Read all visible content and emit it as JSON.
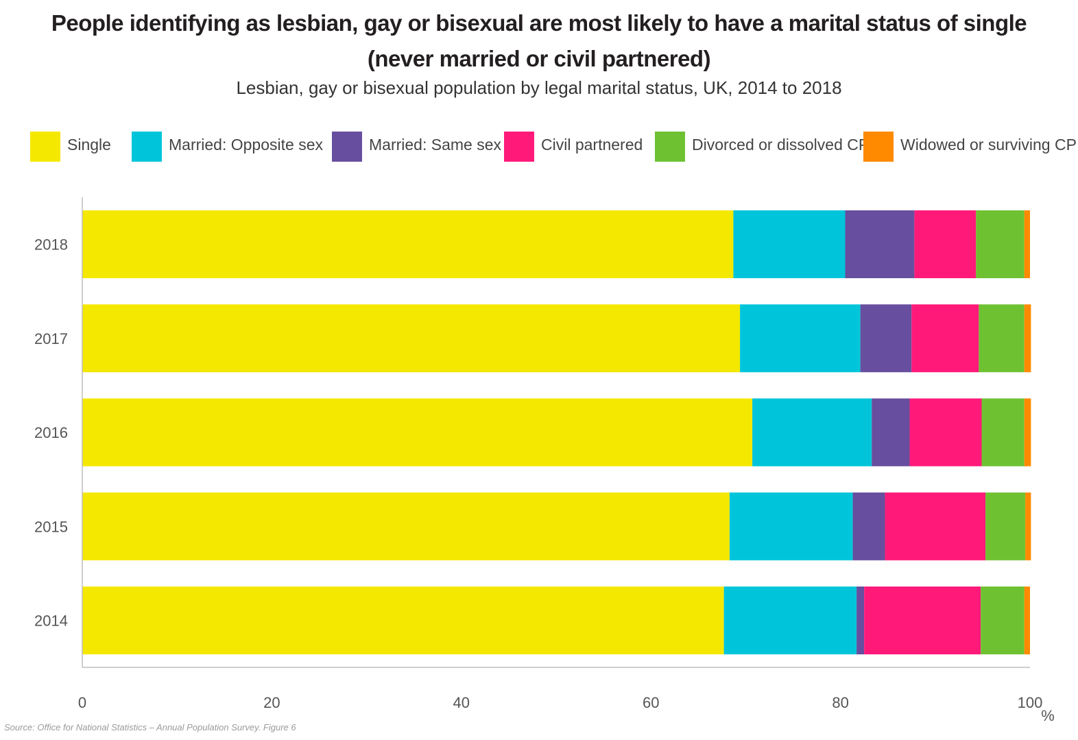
{
  "title_line1": "People identifying as lesbian, gay or bisexual are most likely to have a marital status of single",
  "title_line2": "(never married or civil partnered)",
  "subtitle": "Lesbian, gay or bisexual population by legal marital status, UK, 2014 to 2018",
  "source": "Source: Office for National Statistics – Annual Population Survey. Figure 6",
  "chart_data": {
    "type": "bar",
    "orientation": "horizontal",
    "stacked": true,
    "title": "People identifying as lesbian, gay or bisexual are most likely to have a marital status of single (never married or civil partnered)",
    "subtitle": "Lesbian, gay or bisexual population by legal marital status, UK, 2014 to 2018",
    "xlabel": "%",
    "ylabel": "",
    "xlim": [
      0,
      100
    ],
    "xticks": [
      "0",
      "20",
      "40",
      "60",
      "80",
      "100"
    ],
    "x_unit": "%",
    "grid": false,
    "legend_position": "top",
    "categories": [
      "2018",
      "2017",
      "2016",
      "2015",
      "2014"
    ],
    "series": [
      {
        "name": "Single",
        "color": "#f5e800",
        "values": [
          68.7,
          69.4,
          70.7,
          68.3,
          67.7
        ]
      },
      {
        "name": "Married: Opposite sex",
        "color": "#00c5da",
        "values": [
          11.8,
          12.7,
          12.6,
          13.0,
          14.0
        ]
      },
      {
        "name": "Married: Same sex",
        "color": "#684e9e",
        "values": [
          7.3,
          5.4,
          4.0,
          3.4,
          0.8
        ]
      },
      {
        "name": "Civil partnered",
        "color": "#ff1a7a",
        "values": [
          6.5,
          7.1,
          7.6,
          10.6,
          12.3
        ]
      },
      {
        "name": "Divorced or dissolved CP",
        "color": "#6ec232",
        "values": [
          5.1,
          4.8,
          4.5,
          4.2,
          4.6
        ]
      },
      {
        "name": "Widowed or surviving CP",
        "color": "#ff8a00",
        "values": [
          0.6,
          0.7,
          0.7,
          0.6,
          0.6
        ]
      }
    ]
  }
}
